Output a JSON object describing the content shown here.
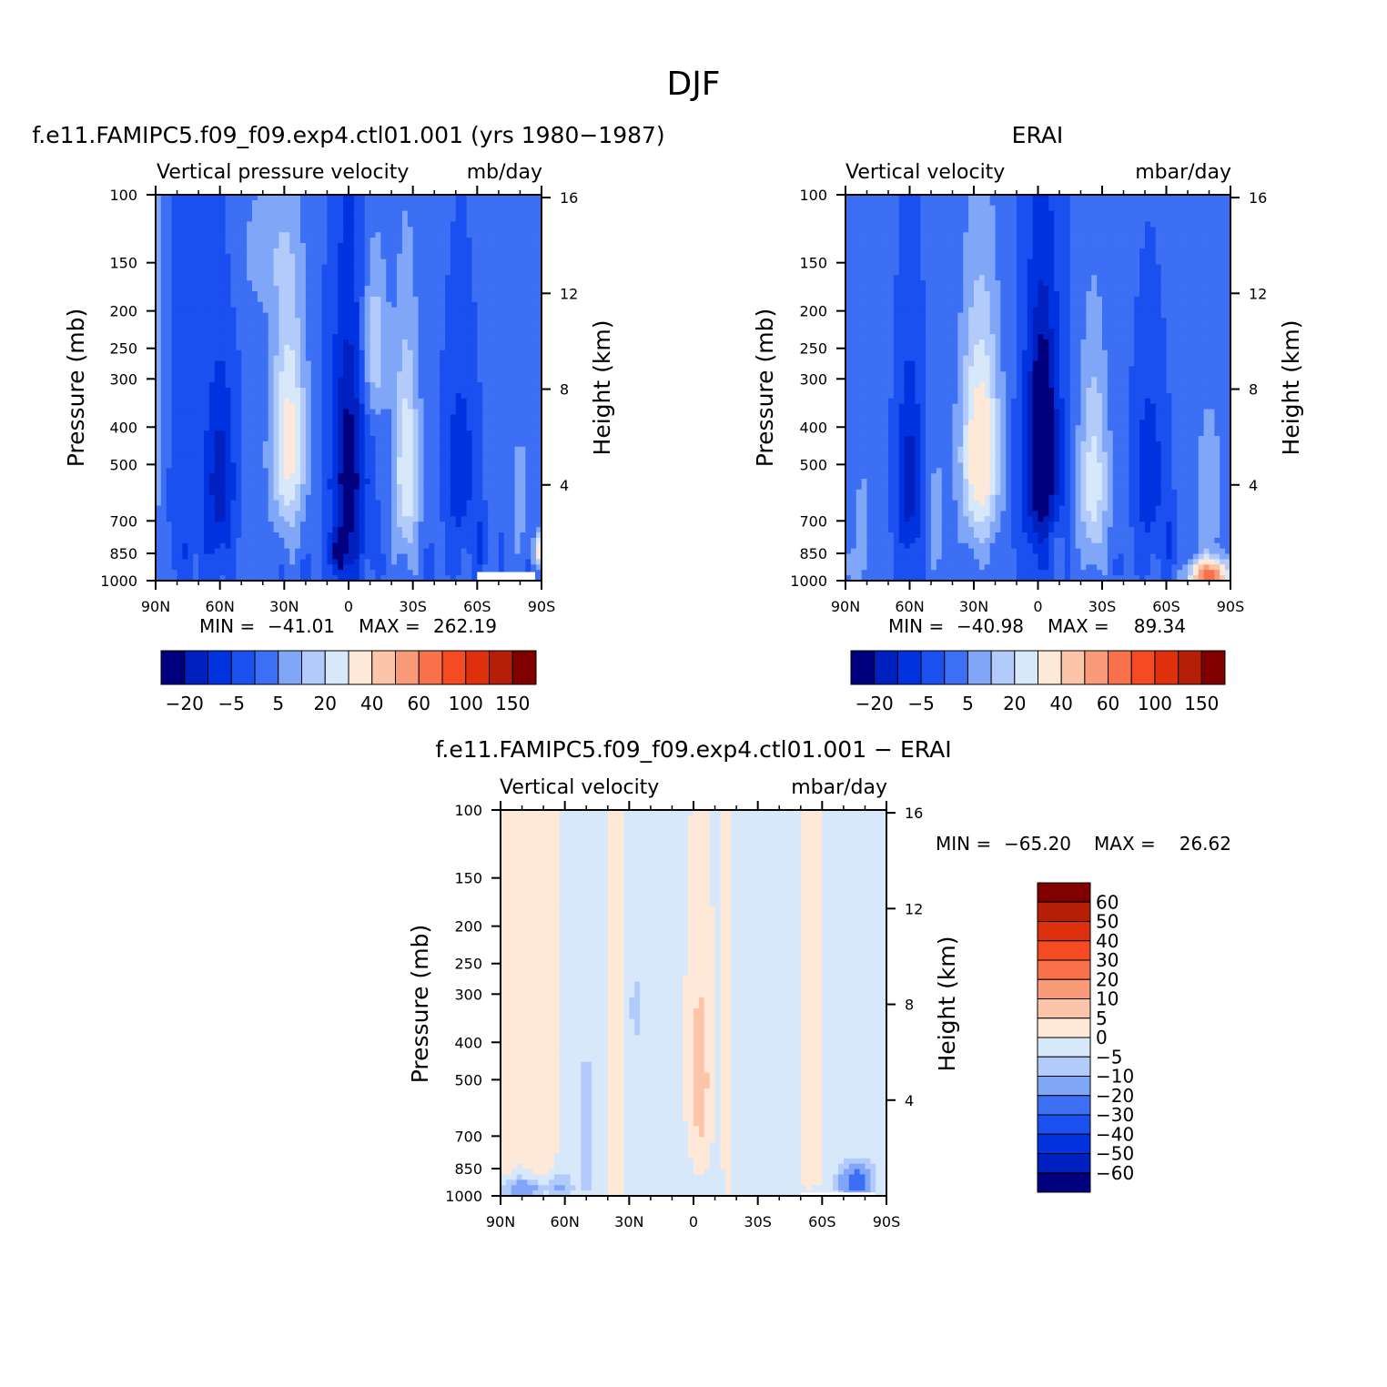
{
  "figure": {
    "title": "DJF"
  },
  "chart_data": [
    {
      "type": "heatmap",
      "panel": "model",
      "title": "f.e11.FAMIPC5.f09_f09.exp4.ctl01.001 (yrs 1980-1987)",
      "left_label": "Vertical pressure velocity",
      "right_label": "mb/day",
      "xlabel": "",
      "ylabel": "Pressure (mb)",
      "ylabel_right": "Height (km)",
      "x_ticks": [
        {
          "value": 90,
          "label": "90N"
        },
        {
          "value": 60,
          "label": "60N"
        },
        {
          "value": 30,
          "label": "30N"
        },
        {
          "value": 0,
          "label": "0"
        },
        {
          "value": -30,
          "label": "30S"
        },
        {
          "value": -60,
          "label": "60S"
        },
        {
          "value": -90,
          "label": "90S"
        }
      ],
      "y_ticks": [
        100,
        150,
        200,
        250,
        300,
        400,
        500,
        700,
        850,
        1000
      ],
      "y_ticks_right": [
        16,
        12,
        8,
        4
      ],
      "xlim": [
        90,
        -90
      ],
      "ylim": [
        1000,
        100
      ],
      "y_scale": "log",
      "stats": {
        "min_label": "MIN =",
        "min": "-41.01",
        "max_label": "MAX =",
        "max": "262.19"
      },
      "colorbar": {
        "orientation": "horizontal",
        "tick_labels": [
          "-20",
          "-5",
          "5",
          "20",
          "40",
          "60",
          "100",
          "150"
        ]
      },
      "missing_box": {
        "lat_from": -60,
        "lat_to": -87,
        "p_from": 950,
        "p_to": 1000
      }
    },
    {
      "type": "heatmap",
      "panel": "obs",
      "title": "ERAI",
      "left_label": "Vertical velocity",
      "right_label": "mbar/day",
      "xlabel": "",
      "ylabel": "Pressure (mb)",
      "ylabel_right": "Height (km)",
      "x_ticks": [
        {
          "value": 90,
          "label": "90N"
        },
        {
          "value": 60,
          "label": "60N"
        },
        {
          "value": 30,
          "label": "30N"
        },
        {
          "value": 0,
          "label": "0"
        },
        {
          "value": -30,
          "label": "30S"
        },
        {
          "value": -60,
          "label": "60S"
        },
        {
          "value": -90,
          "label": "90S"
        }
      ],
      "y_ticks": [
        100,
        150,
        200,
        250,
        300,
        400,
        500,
        700,
        850,
        1000
      ],
      "y_ticks_right": [
        16,
        12,
        8,
        4
      ],
      "xlim": [
        90,
        -90
      ],
      "ylim": [
        1000,
        100
      ],
      "y_scale": "log",
      "stats": {
        "min_label": "MIN =",
        "min": "-40.98",
        "max_label": "MAX =",
        "max": "89.34"
      },
      "colorbar": {
        "orientation": "horizontal",
        "tick_labels": [
          "-20",
          "-5",
          "5",
          "20",
          "40",
          "60",
          "100",
          "150"
        ]
      }
    },
    {
      "type": "heatmap",
      "panel": "diff",
      "title": "f.e11.FAMIPC5.f09_f09.exp4.ctl01.001 - ERAI",
      "left_label": "Vertical velocity",
      "right_label": "mbar/day",
      "xlabel": "",
      "ylabel": "Pressure (mb)",
      "ylabel_right": "Height (km)",
      "x_ticks": [
        {
          "value": 90,
          "label": "90N"
        },
        {
          "value": 60,
          "label": "60N"
        },
        {
          "value": 30,
          "label": "30N"
        },
        {
          "value": 0,
          "label": "0"
        },
        {
          "value": -30,
          "label": "30S"
        },
        {
          "value": -60,
          "label": "60S"
        },
        {
          "value": -90,
          "label": "90S"
        }
      ],
      "y_ticks": [
        100,
        150,
        200,
        250,
        300,
        400,
        500,
        700,
        850,
        1000
      ],
      "y_ticks_right": [
        16,
        12,
        8,
        4
      ],
      "xlim": [
        90,
        -90
      ],
      "ylim": [
        1000,
        100
      ],
      "y_scale": "log",
      "stats": {
        "min_label": "MIN =",
        "min": "-65.20",
        "max_label": "MAX =",
        "max": "26.62"
      },
      "colorbar": {
        "orientation": "vertical",
        "tick_labels": [
          "60",
          "50",
          "40",
          "30",
          "20",
          "10",
          "5",
          "0",
          "-5",
          "-10",
          "-20",
          "-30",
          "-40",
          "-50",
          "-60"
        ]
      },
      "missing_box": {
        "lat_from": -50,
        "lat_to": -85,
        "p_from": 980,
        "p_to": 1000
      }
    }
  ],
  "colors": {
    "abs_scale": [
      "#00007f",
      "#0020bf",
      "#0033e0",
      "#1a4ff0",
      "#3d6ff5",
      "#80a6f8",
      "#b2cbfa",
      "#d8e8fb",
      "#fee8d8",
      "#fcc4a8",
      "#f99a78",
      "#f8714b",
      "#f54a22",
      "#df300e",
      "#b51f08",
      "#800000"
    ],
    "diff_scale": [
      "#800000",
      "#b51f08",
      "#df300e",
      "#f54a22",
      "#f8714b",
      "#f99a78",
      "#fcc4a8",
      "#fee8d8",
      "#d8e8fb",
      "#b2cbfa",
      "#80a6f8",
      "#3d6ff5",
      "#1a4ff0",
      "#0033e0",
      "#0020bf",
      "#00007f"
    ]
  }
}
